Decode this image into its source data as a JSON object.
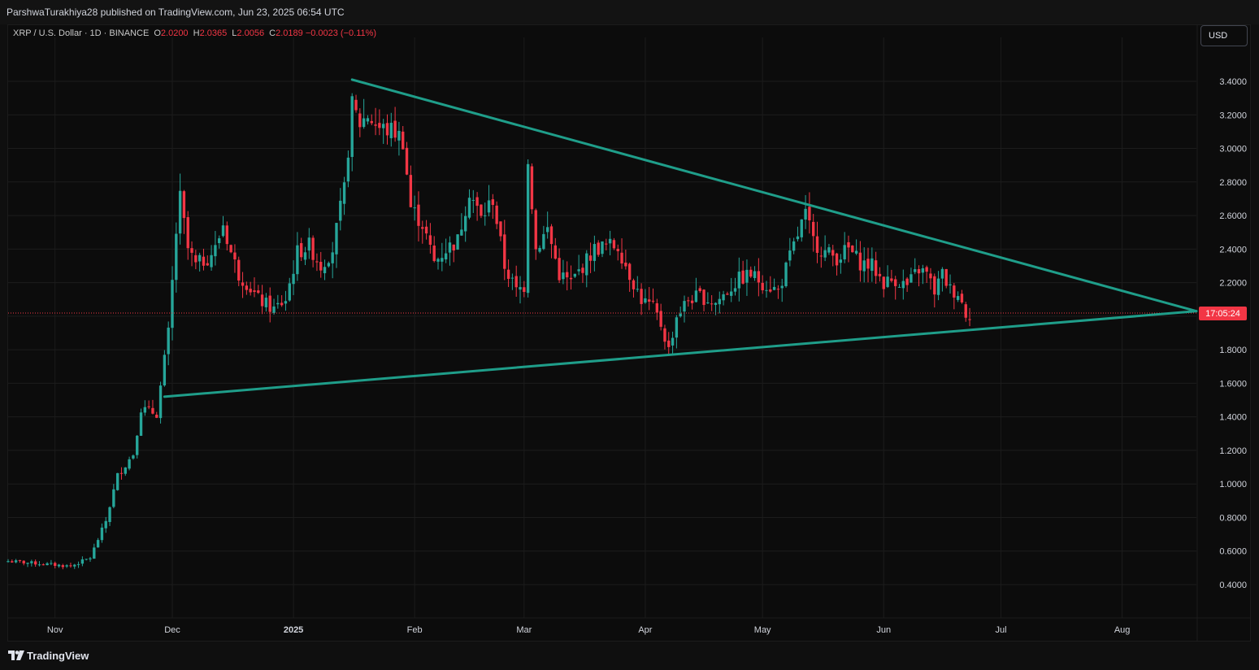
{
  "publisher_bar": {
    "text": "ParshwaTurakhiya28 published on TradingView.com, Jun 23, 2025 06:54 UTC"
  },
  "legend": {
    "symbol": "XRP / U.S. Dollar · 1D · BINANCE",
    "o_label": "O",
    "o_value": "2.0200",
    "h_label": "H",
    "h_value": "2.0365",
    "l_label": "L",
    "l_value": "2.0056",
    "c_label": "C",
    "c_value": "2.0189",
    "change": "−0.0023 (−0.11%)"
  },
  "currency_button": {
    "label": "USD"
  },
  "countdown": "17:05:24",
  "footer": {
    "brand": "TradingView"
  },
  "colors": {
    "up": "#26a69a",
    "down": "#f23645",
    "trendline": "#1f9e8a",
    "background": "#0c0c0c",
    "grid": "#1c1c1c"
  },
  "icons": [
    "tradingview-logo-icon"
  ],
  "chart_data": {
    "type": "candlestick",
    "symbol": "XRP / U.S. Dollar",
    "interval": "1D",
    "exchange": "BINANCE",
    "y_axis": {
      "ticks": [
        "0.4000",
        "0.6000",
        "0.8000",
        "1.0000",
        "1.2000",
        "1.4000",
        "1.6000",
        "1.8000",
        "2.0000",
        "2.2000",
        "2.4000",
        "2.6000",
        "2.8000",
        "3.0000",
        "3.2000",
        "3.4000"
      ],
      "range": [
        0.4,
        3.6
      ]
    },
    "x_axis": {
      "ticks": [
        "Nov",
        "Dec",
        "2025",
        "Feb",
        "Mar",
        "Apr",
        "May",
        "Jun",
        "Jul",
        "Aug"
      ],
      "range": [
        "2024-10-20",
        "2025-08-20"
      ]
    },
    "current_price": 2.0189,
    "price_line_style": "dotted",
    "close_path": [
      [
        "2024-10-20",
        0.54
      ],
      [
        "2024-11-05",
        0.51
      ],
      [
        "2024-11-10",
        0.56
      ],
      [
        "2024-11-14",
        0.78
      ],
      [
        "2024-11-17",
        1.05
      ],
      [
        "2024-11-21",
        1.18
      ],
      [
        "2024-11-23",
        1.45
      ],
      [
        "2024-11-27",
        1.42
      ],
      [
        "2024-11-30",
        1.9
      ],
      [
        "2024-12-02",
        2.5
      ],
      [
        "2024-12-03",
        2.7
      ],
      [
        "2024-12-05",
        2.4
      ],
      [
        "2024-12-07",
        2.3
      ],
      [
        "2024-12-10",
        2.35
      ],
      [
        "2024-12-12",
        2.4
      ],
      [
        "2024-12-14",
        2.55
      ],
      [
        "2024-12-16",
        2.38
      ],
      [
        "2024-12-18",
        2.25
      ],
      [
        "2024-12-20",
        2.2
      ],
      [
        "2024-12-23",
        2.1
      ],
      [
        "2024-12-27",
        2.04
      ],
      [
        "2024-12-30",
        2.1
      ],
      [
        "2025-01-02",
        2.38
      ],
      [
        "2025-01-05",
        2.42
      ],
      [
        "2025-01-08",
        2.3
      ],
      [
        "2025-01-11",
        2.4
      ],
      [
        "2025-01-14",
        2.75
      ],
      [
        "2025-01-16",
        3.25
      ],
      [
        "2025-01-18",
        3.15
      ],
      [
        "2025-01-20",
        3.2
      ],
      [
        "2025-01-23",
        3.12
      ],
      [
        "2025-01-27",
        3.1
      ],
      [
        "2025-01-29",
        3.05
      ],
      [
        "2025-01-31",
        2.65
      ],
      [
        "2025-02-03",
        2.55
      ],
      [
        "2025-02-06",
        2.32
      ],
      [
        "2025-02-09",
        2.4
      ],
      [
        "2025-02-12",
        2.45
      ],
      [
        "2025-02-15",
        2.75
      ],
      [
        "2025-02-18",
        2.58
      ],
      [
        "2025-02-21",
        2.7
      ],
      [
        "2025-02-24",
        2.3
      ],
      [
        "2025-02-27",
        2.15
      ],
      [
        "2025-03-01",
        2.18
      ],
      [
        "2025-03-02",
        2.95
      ],
      [
        "2025-03-04",
        2.4
      ],
      [
        "2025-03-07",
        2.52
      ],
      [
        "2025-03-10",
        2.25
      ],
      [
        "2025-03-13",
        2.2
      ],
      [
        "2025-03-16",
        2.3
      ],
      [
        "2025-03-19",
        2.4
      ],
      [
        "2025-03-22",
        2.42
      ],
      [
        "2025-03-25",
        2.42
      ],
      [
        "2025-03-28",
        2.25
      ],
      [
        "2025-03-31",
        2.1
      ],
      [
        "2025-04-03",
        2.05
      ],
      [
        "2025-04-05",
        1.95
      ],
      [
        "2025-04-07",
        1.8
      ],
      [
        "2025-04-09",
        2.0
      ],
      [
        "2025-04-12",
        2.1
      ],
      [
        "2025-04-15",
        2.12
      ],
      [
        "2025-04-19",
        2.08
      ],
      [
        "2025-04-22",
        2.15
      ],
      [
        "2025-04-25",
        2.22
      ],
      [
        "2025-04-28",
        2.25
      ],
      [
        "2025-05-01",
        2.2
      ],
      [
        "2025-05-05",
        2.15
      ],
      [
        "2025-05-08",
        2.35
      ],
      [
        "2025-05-11",
        2.55
      ],
      [
        "2025-05-12",
        2.6
      ],
      [
        "2025-05-14",
        2.45
      ],
      [
        "2025-05-17",
        2.38
      ],
      [
        "2025-05-20",
        2.35
      ],
      [
        "2025-05-23",
        2.4
      ],
      [
        "2025-05-26",
        2.32
      ],
      [
        "2025-05-29",
        2.3
      ],
      [
        "2025-06-01",
        2.2
      ],
      [
        "2025-06-04",
        2.22
      ],
      [
        "2025-06-07",
        2.18
      ],
      [
        "2025-06-10",
        2.28
      ],
      [
        "2025-06-12",
        2.25
      ],
      [
        "2025-06-14",
        2.15
      ],
      [
        "2025-06-16",
        2.25
      ],
      [
        "2025-06-18",
        2.16
      ],
      [
        "2025-06-20",
        2.14
      ],
      [
        "2025-06-22",
        2.02
      ],
      [
        "2025-06-23",
        2.0189
      ]
    ],
    "trendlines": [
      {
        "name": "",
        "from": [
          "2025-01-16",
          3.41
        ],
        "to": [
          "2025-08-20",
          2.03
        ]
      },
      {
        "name": "",
        "from": [
          "2024-11-29",
          1.52
        ],
        "to": [
          "2025-08-20",
          2.03
        ]
      }
    ],
    "grid": true
  }
}
